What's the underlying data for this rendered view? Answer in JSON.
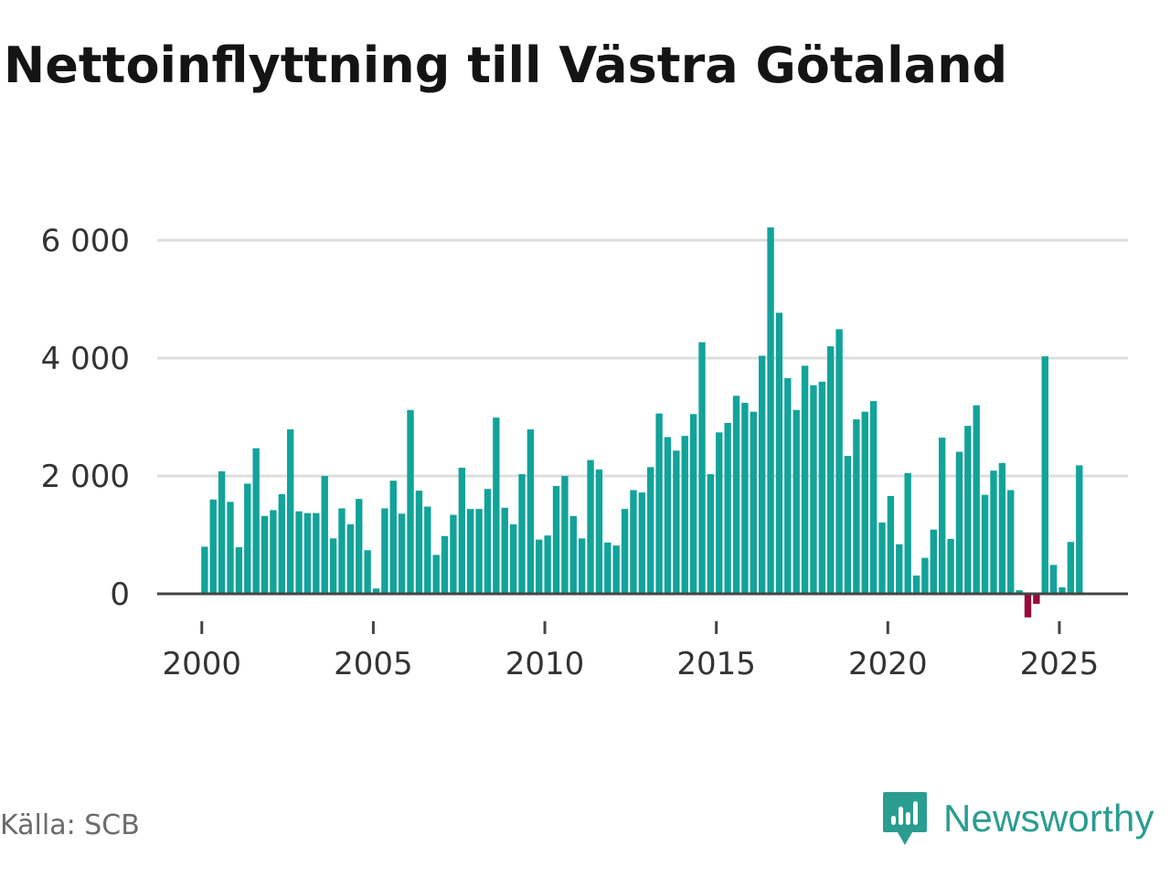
{
  "title": "Nettoinflyttning till Västra Götaland",
  "source": "Källa: SCB",
  "brand": {
    "name": "Newsworthy",
    "icon": "newsworthy-logo-icon",
    "color": "#2a9d90"
  },
  "colors": {
    "positive": "#12a39a",
    "negative": "#990a3a",
    "grid": "#dddddd",
    "axis": "#444444"
  },
  "chart_data": {
    "type": "bar",
    "title": "Nettoinflyttning till Västra Götaland",
    "xlabel": "",
    "ylabel": "",
    "frequency": "quarterly",
    "ylim": [
      -400,
      6300
    ],
    "xlim": [
      1998.7,
      2027.0
    ],
    "y_ticks": [
      0,
      2000,
      4000,
      6000
    ],
    "y_tick_labels": [
      "0",
      "2 000",
      "4 000",
      "6 000"
    ],
    "x_ticks": [
      2000,
      2005,
      2010,
      2015,
      2020,
      2025
    ],
    "x_tick_labels": [
      "2000",
      "2005",
      "2010",
      "2015",
      "2020",
      "2025"
    ],
    "start_year": 2000,
    "values": [
      800,
      1600,
      2080,
      1560,
      790,
      1870,
      2470,
      1320,
      1420,
      1690,
      2790,
      1400,
      1370,
      1370,
      2000,
      940,
      1450,
      1180,
      1610,
      740,
      90,
      1450,
      1920,
      1360,
      3120,
      1750,
      1480,
      660,
      980,
      1340,
      2140,
      1440,
      1440,
      1780,
      2990,
      1460,
      1180,
      2030,
      2790,
      920,
      990,
      1830,
      2000,
      1320,
      940,
      2270,
      2110,
      870,
      820,
      1440,
      1760,
      1720,
      2150,
      3060,
      2660,
      2430,
      2680,
      3050,
      4270,
      2030,
      2740,
      2900,
      3360,
      3240,
      3090,
      4040,
      6220,
      4770,
      3660,
      3120,
      3870,
      3540,
      3600,
      4200,
      4490,
      2340,
      2960,
      3090,
      3270,
      1210,
      1660,
      840,
      2050,
      310,
      610,
      1090,
      2650,
      930,
      2410,
      2850,
      3200,
      1680,
      2090,
      2220,
      1760,
      60,
      -400,
      -170,
      4030,
      490,
      110,
      880,
      2180
    ]
  }
}
